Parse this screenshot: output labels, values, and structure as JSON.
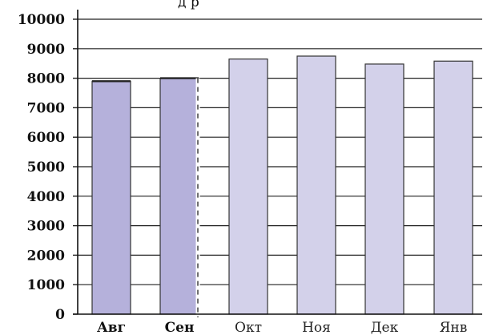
{
  "chart_data": {
    "type": "bar",
    "title": "",
    "xlabel": "",
    "ylabel": "",
    "categories": [
      "Авг",
      "Сен",
      "Окт",
      "Ноя",
      "Дек",
      "Янв"
    ],
    "values": [
      7900,
      8000,
      8650,
      8750,
      8480,
      8580
    ],
    "ylim": [
      0,
      10000
    ],
    "yticks": [
      0,
      1000,
      2000,
      3000,
      4000,
      5000,
      6000,
      7000,
      8000,
      9000,
      10000
    ],
    "grid": true,
    "bold_categories": [
      "Авг",
      "Сен"
    ],
    "divider_after_category": "Сен",
    "colors": {
      "actual_bar": "#b5b1db",
      "forecast_bar": "#d3d1ea",
      "bar_outline": "#333333",
      "grid": "#222222"
    }
  },
  "title_fragment": "д  р"
}
